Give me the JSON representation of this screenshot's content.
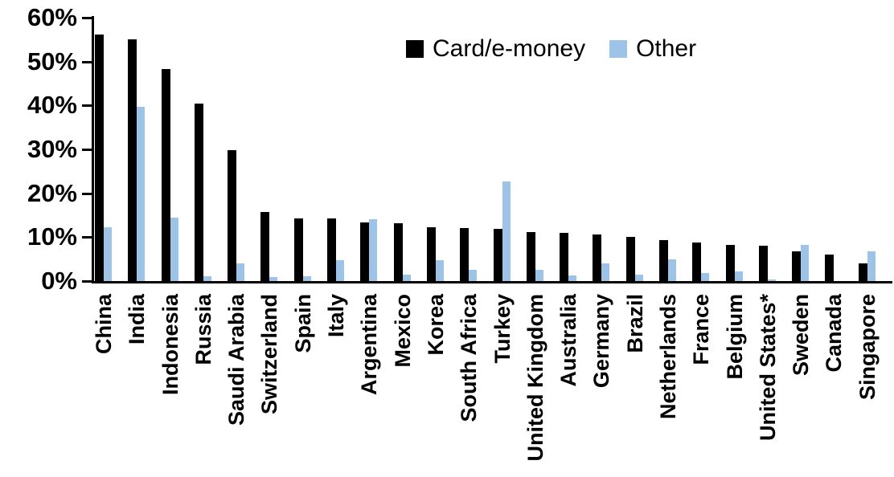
{
  "chart_data": {
    "type": "bar",
    "title": "",
    "xlabel": "",
    "ylabel": "",
    "categories": [
      "China",
      "India",
      "Indonesia",
      "Russia",
      "Saudi Arabia",
      "Switzerland",
      "Spain",
      "Italy",
      "Argentina",
      "Mexico",
      "Korea",
      "South Africa",
      "Turkey",
      "United Kingdom",
      "Australia",
      "Germany",
      "Brazil",
      "Netherlands",
      "France",
      "Belgium",
      "United States*",
      "Sweden",
      "Canada",
      "Singapore"
    ],
    "series": [
      {
        "name": "Card/e-money",
        "color": "#000000",
        "values": [
          56.2,
          55.0,
          48.3,
          40.5,
          29.8,
          15.7,
          14.2,
          14.2,
          13.4,
          13.1,
          12.3,
          12.0,
          11.8,
          11.2,
          11.0,
          10.7,
          10.1,
          9.3,
          8.8,
          8.3,
          8.0,
          6.7,
          6.0,
          4.0
        ]
      },
      {
        "name": "Other",
        "color": "#9DC3E6",
        "values": [
          12.3,
          39.7,
          14.5,
          1.1,
          4.0,
          0.9,
          1.1,
          4.7,
          14.0,
          1.4,
          4.7,
          2.5,
          22.6,
          2.6,
          1.2,
          4.1,
          1.4,
          5.0,
          1.8,
          2.2,
          0.3,
          8.2,
          0.0,
          6.7
        ]
      }
    ],
    "ylim": [
      0,
      60
    ],
    "ytick_step": 10,
    "ytick_labels": [
      "0%",
      "10%",
      "20%",
      "30%",
      "40%",
      "50%",
      "60%"
    ],
    "grid": false,
    "legend_position": "top-center-inside",
    "axis_color": "#000000",
    "background": "#FFFFFF"
  }
}
